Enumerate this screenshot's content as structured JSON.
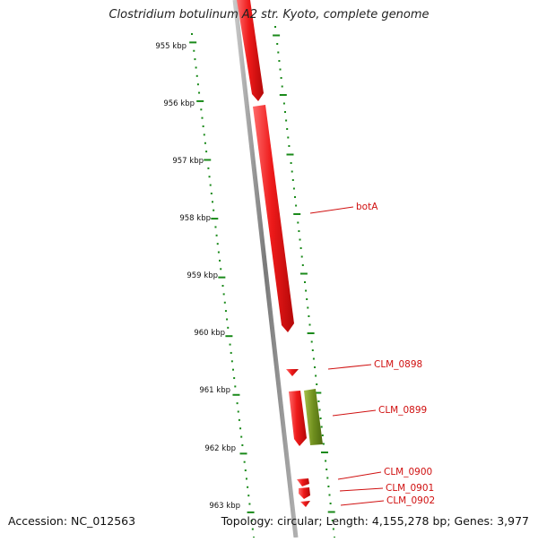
{
  "title": "Clostridium botulinum A2 str. Kyoto, complete genome",
  "footer": {
    "accession": "Accession: NC_012563",
    "summary": "Topology: circular; Length: 4,155,278 bp; Genes: 3,977"
  },
  "ruler": {
    "unit": "kbp",
    "ticks": [
      "955 kbp",
      "956 kbp",
      "957 kbp",
      "958 kbp",
      "959 kbp",
      "960 kbp",
      "961 kbp",
      "962 kbp",
      "963 kbp"
    ]
  },
  "genes": [
    {
      "label": "botA",
      "color": "#e8141a"
    },
    {
      "label": "CLM_0898",
      "color": "#e8141a"
    },
    {
      "label": "CLM_0899",
      "color": "#e8141a"
    },
    {
      "label": "CLM_0900",
      "color": "#e8141a"
    },
    {
      "label": "CLM_0901",
      "color": "#e8141a"
    },
    {
      "label": "CLM_0902",
      "color": "#e8141a"
    }
  ],
  "colors": {
    "gene_forward": "#e8141a",
    "gene_other": "#6f8f1e",
    "backbone": "#8a8a8a",
    "ruler_tick": "#1a8a1a",
    "label": "#d01010"
  }
}
